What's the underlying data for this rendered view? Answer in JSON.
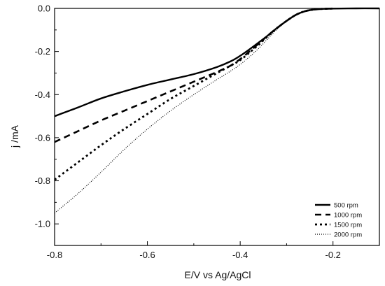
{
  "chart_data": {
    "type": "line",
    "xlabel": "E/V vs Ag/AgCl",
    "ylabel": "j /mA",
    "xlim": [
      -0.8,
      -0.1
    ],
    "ylim": [
      -1.1,
      0.0
    ],
    "xticks": [
      -0.8,
      -0.6,
      -0.4,
      -0.2
    ],
    "xtick_labels": [
      "-0.8",
      "-0.6",
      "-0.4",
      "-0.2"
    ],
    "yticks": [
      0.0,
      -0.2,
      -0.4,
      -0.6,
      -0.8,
      -1.0
    ],
    "ytick_labels": [
      "0.0",
      "-0.2",
      "-0.4",
      "-0.6",
      "-0.8",
      "-1.0"
    ],
    "grid": false,
    "legend_position": "bottom-right",
    "series": [
      {
        "name": "500 rpm",
        "style": "solid",
        "x": [
          -0.8,
          -0.75,
          -0.7,
          -0.65,
          -0.6,
          -0.55,
          -0.5,
          -0.45,
          -0.42,
          -0.4,
          -0.38,
          -0.36,
          -0.34,
          -0.32,
          -0.3,
          -0.28,
          -0.26,
          -0.24,
          -0.22,
          -0.2,
          -0.15,
          -0.1
        ],
        "y": [
          -0.5,
          -0.46,
          -0.418,
          -0.385,
          -0.355,
          -0.33,
          -0.305,
          -0.272,
          -0.245,
          -0.22,
          -0.19,
          -0.158,
          -0.125,
          -0.09,
          -0.058,
          -0.03,
          -0.013,
          -0.005,
          -0.002,
          -0.001,
          0.0,
          0.0
        ]
      },
      {
        "name": "1000 rpm",
        "style": "dashed",
        "x": [
          -0.8,
          -0.75,
          -0.7,
          -0.65,
          -0.6,
          -0.55,
          -0.5,
          -0.45,
          -0.42,
          -0.4,
          -0.38,
          -0.36,
          -0.34,
          -0.32,
          -0.3,
          -0.28,
          -0.26,
          -0.24,
          -0.22,
          -0.2
        ],
        "y": [
          -0.62,
          -0.57,
          -0.52,
          -0.475,
          -0.43,
          -0.385,
          -0.34,
          -0.295,
          -0.265,
          -0.235,
          -0.2,
          -0.163,
          -0.125,
          -0.09,
          -0.058,
          -0.03,
          -0.013,
          -0.005,
          -0.002,
          -0.001
        ]
      },
      {
        "name": "1500 rpm",
        "style": "dotted",
        "x": [
          -0.8,
          -0.75,
          -0.7,
          -0.65,
          -0.6,
          -0.55,
          -0.5,
          -0.45,
          -0.42,
          -0.4,
          -0.38,
          -0.36,
          -0.34,
          -0.32,
          -0.3,
          -0.28,
          -0.26,
          -0.24,
          -0.22,
          -0.2
        ],
        "y": [
          -0.795,
          -0.715,
          -0.635,
          -0.56,
          -0.49,
          -0.42,
          -0.36,
          -0.3,
          -0.265,
          -0.24,
          -0.205,
          -0.168,
          -0.128,
          -0.09,
          -0.058,
          -0.03,
          -0.013,
          -0.005,
          -0.002,
          -0.001
        ]
      },
      {
        "name": "2000 rpm",
        "style": "fine-dotted",
        "x": [
          -0.8,
          -0.75,
          -0.7,
          -0.65,
          -0.6,
          -0.55,
          -0.5,
          -0.45,
          -0.42,
          -0.4,
          -0.38,
          -0.36,
          -0.34,
          -0.32,
          -0.3,
          -0.28,
          -0.26,
          -0.24,
          -0.22,
          -0.2
        ],
        "y": [
          -0.95,
          -0.86,
          -0.76,
          -0.655,
          -0.56,
          -0.475,
          -0.4,
          -0.33,
          -0.29,
          -0.26,
          -0.225,
          -0.185,
          -0.14,
          -0.095,
          -0.06,
          -0.03,
          -0.013,
          -0.005,
          -0.002,
          -0.001
        ]
      }
    ]
  }
}
